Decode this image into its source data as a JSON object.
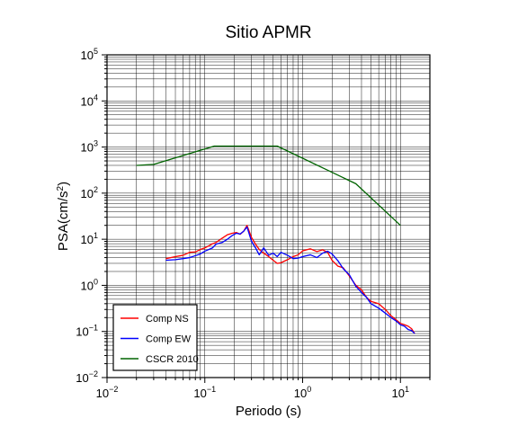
{
  "chart_data": {
    "type": "line",
    "title": "Sitio APMR",
    "xlabel": "Periodo (s)",
    "ylabel_base": "PSA(cm/s",
    "ylabel_sup": "2",
    "ylabel_end": ")",
    "x_scale": "log",
    "y_scale": "log",
    "xlim": [
      0.01,
      20
    ],
    "ylim": [
      0.01,
      100000
    ],
    "grid": true,
    "legend_position": "bottom-left",
    "x_ticks": [
      {
        "base": "10",
        "exp": "−2"
      },
      {
        "base": "10",
        "exp": "−1"
      },
      {
        "base": "10",
        "exp": "0"
      },
      {
        "base": "10",
        "exp": "1"
      }
    ],
    "y_ticks": [
      {
        "base": "10",
        "exp": "−2"
      },
      {
        "base": "10",
        "exp": "−1"
      },
      {
        "base": "10",
        "exp": "0"
      },
      {
        "base": "10",
        "exp": "1"
      },
      {
        "base": "10",
        "exp": "2"
      },
      {
        "base": "10",
        "exp": "3"
      },
      {
        "base": "10",
        "exp": "4"
      },
      {
        "base": "10",
        "exp": "5"
      }
    ],
    "series": [
      {
        "name": "Comp NS",
        "color": "#ff0000",
        "x": [
          0.04,
          0.05,
          0.06,
          0.07,
          0.08,
          0.09,
          0.1,
          0.11,
          0.12,
          0.13,
          0.15,
          0.17,
          0.19,
          0.21,
          0.23,
          0.25,
          0.27,
          0.3,
          0.33,
          0.36,
          0.4,
          0.45,
          0.5,
          0.55,
          0.6,
          0.7,
          0.8,
          0.9,
          1.0,
          1.2,
          1.4,
          1.6,
          1.8,
          2.0,
          2.3,
          2.6,
          3.0,
          3.5,
          4.0,
          4.5,
          5.0,
          6.0,
          7.0,
          8.0,
          9.0,
          10,
          11,
          12,
          13,
          14
        ],
        "y": [
          3.8,
          4.2,
          4.5,
          5.2,
          5.3,
          6.0,
          6.5,
          7.2,
          8.0,
          8.5,
          10.5,
          12.5,
          13.5,
          14.0,
          12.8,
          15.0,
          20.0,
          11.0,
          7.8,
          6.0,
          5.0,
          4.2,
          3.5,
          3.0,
          3.1,
          3.6,
          4.2,
          4.6,
          5.6,
          6.2,
          5.4,
          5.9,
          5.2,
          3.5,
          2.6,
          2.4,
          1.6,
          1.0,
          0.8,
          0.55,
          0.45,
          0.4,
          0.3,
          0.22,
          0.18,
          0.15,
          0.14,
          0.13,
          0.115,
          0.09
        ]
      },
      {
        "name": "Comp EW",
        "color": "#0000ff",
        "x": [
          0.04,
          0.05,
          0.06,
          0.07,
          0.08,
          0.09,
          0.1,
          0.11,
          0.12,
          0.13,
          0.15,
          0.17,
          0.19,
          0.21,
          0.23,
          0.25,
          0.27,
          0.3,
          0.33,
          0.36,
          0.4,
          0.45,
          0.5,
          0.55,
          0.6,
          0.7,
          0.8,
          0.9,
          1.0,
          1.2,
          1.4,
          1.6,
          1.8,
          2.0,
          2.3,
          2.6,
          3.0,
          3.5,
          4.0,
          4.5,
          5.0,
          6.0,
          7.0,
          8.0,
          9.0,
          10,
          11,
          12,
          13,
          14
        ],
        "y": [
          3.5,
          3.6,
          3.8,
          4.0,
          4.4,
          4.8,
          5.5,
          6.0,
          6.5,
          7.8,
          8.5,
          10.0,
          12.0,
          13.5,
          13.0,
          15.0,
          18.5,
          9.0,
          6.5,
          4.6,
          6.5,
          4.5,
          5.0,
          4.2,
          5.2,
          4.5,
          3.8,
          3.9,
          4.2,
          4.6,
          4.0,
          5.0,
          5.5,
          4.8,
          3.4,
          2.3,
          1.7,
          0.95,
          0.7,
          0.55,
          0.4,
          0.32,
          0.25,
          0.2,
          0.17,
          0.14,
          0.13,
          0.11,
          0.105,
          0.09
        ]
      },
      {
        "name": "CSCR 2010",
        "color": "#006400",
        "x": [
          0.02,
          0.03,
          0.125,
          0.55,
          3.5,
          10
        ],
        "y": [
          400,
          420,
          1050,
          1050,
          160,
          20
        ]
      }
    ]
  }
}
